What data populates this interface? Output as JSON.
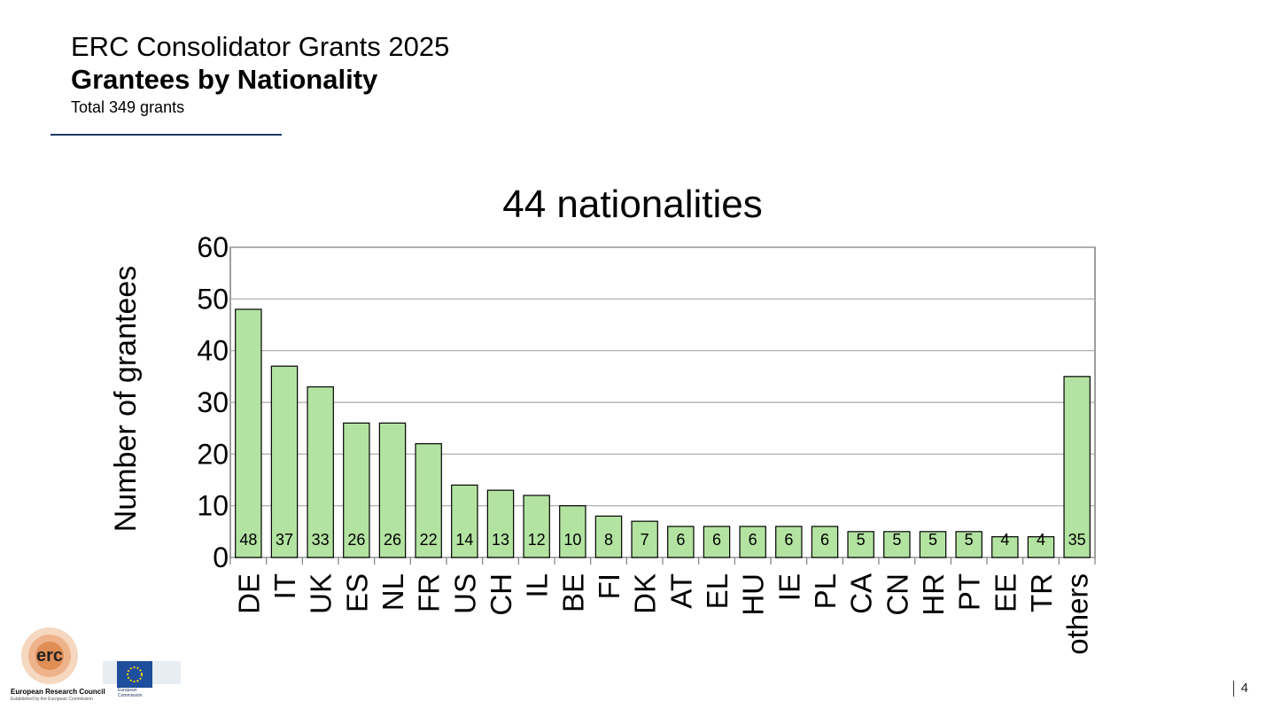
{
  "header": {
    "title": "ERC Consolidator Grants 2025",
    "subtitle": "Grantees by Nationality",
    "total": "Total 349 grants"
  },
  "footer": {
    "page_number": "4",
    "erc_logo_text": "erc",
    "erc_name": "European Research Council",
    "erc_established": "Established by the European Commission",
    "ec_name": "European Commission"
  },
  "colors": {
    "bar_fill": "#b3e3a1",
    "bar_stroke": "#000000",
    "rule": "#1f3864",
    "grid": "#a6a6a6"
  },
  "chart_data": {
    "type": "bar",
    "title": "44 nationalities",
    "xlabel": "",
    "ylabel": "Number of grantees",
    "ylim": [
      0,
      60
    ],
    "yticks": [
      0,
      10,
      20,
      30,
      40,
      50,
      60
    ],
    "grid": true,
    "categories": [
      "DE",
      "IT",
      "UK",
      "ES",
      "NL",
      "FR",
      "US",
      "CH",
      "IL",
      "BE",
      "FI",
      "DK",
      "AT",
      "EL",
      "HU",
      "IE",
      "PL",
      "CA",
      "CN",
      "HR",
      "PT",
      "EE",
      "TR",
      "others"
    ],
    "values": [
      48,
      37,
      33,
      26,
      26,
      22,
      14,
      13,
      12,
      10,
      8,
      7,
      6,
      6,
      6,
      6,
      6,
      5,
      5,
      5,
      5,
      4,
      4,
      35
    ]
  }
}
